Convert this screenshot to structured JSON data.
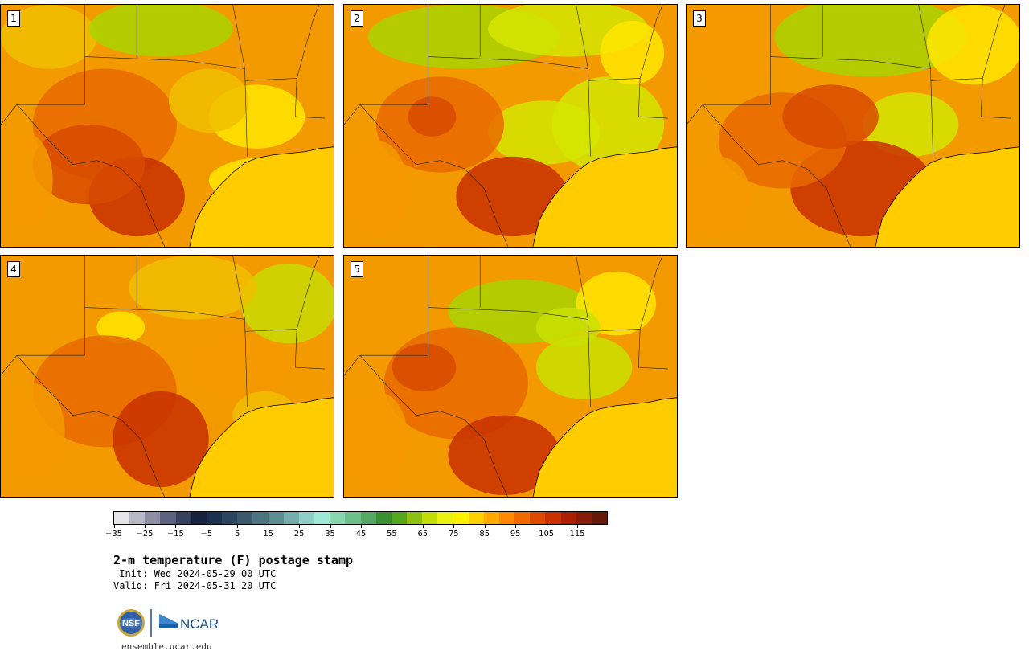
{
  "panels": [
    {
      "label": "1",
      "palette": [
        "#f39a00",
        "#e86a00",
        "#f0c000",
        "#ffe600",
        "#a8d400",
        "#d84a00",
        "#c83000"
      ]
    },
    {
      "label": "2",
      "palette": [
        "#f39a00",
        "#e86a00",
        "#ffe600",
        "#d4e600",
        "#a8d400",
        "#d84a00",
        "#c83000"
      ]
    },
    {
      "label": "3",
      "palette": [
        "#f39a00",
        "#e86a00",
        "#ffe600",
        "#d4e600",
        "#a8d400",
        "#d84a00",
        "#c83000"
      ]
    },
    {
      "label": "4",
      "palette": [
        "#f39a00",
        "#e86a00",
        "#f0c000",
        "#ffe600",
        "#c8dc00",
        "#d84a00",
        "#c83000"
      ]
    },
    {
      "label": "5",
      "palette": [
        "#f39a00",
        "#e86a00",
        "#ffe600",
        "#c8e000",
        "#a8d400",
        "#d84a00",
        "#c83000"
      ]
    }
  ],
  "colorbar": {
    "colors": [
      "#e6e6ea",
      "#b8b8c6",
      "#8e8fa4",
      "#5d6280",
      "#36405f",
      "#16223f",
      "#1d3050",
      "#2a465f",
      "#3a5a6c",
      "#4a7580",
      "#5d8e92",
      "#76aeab",
      "#8ecfc5",
      "#9ee8d8",
      "#8ad6b0",
      "#6ec08a",
      "#55a863",
      "#3a9030",
      "#54a61c",
      "#8cc013",
      "#c3dc08",
      "#eaf010",
      "#ffef00",
      "#ffd000",
      "#ffa800",
      "#ff8800",
      "#f06a00",
      "#e04a00",
      "#c83000",
      "#a82000",
      "#881a08",
      "#661808"
    ],
    "tick_labels": [
      "−35",
      "−25",
      "−15",
      "−5",
      "5",
      "15",
      "25",
      "35",
      "45",
      "55",
      "65",
      "75",
      "85",
      "95",
      "105",
      "115"
    ]
  },
  "title": "2-m temperature (F) postage stamp",
  "init_text": " Init: Wed 2024-05-29 00 UTC",
  "valid_text": "Valid: Fri 2024-05-31 20 UTC",
  "logos": {
    "nsf": "NSF",
    "ncar": "NCAR"
  },
  "url": "ensemble.ucar.edu"
}
